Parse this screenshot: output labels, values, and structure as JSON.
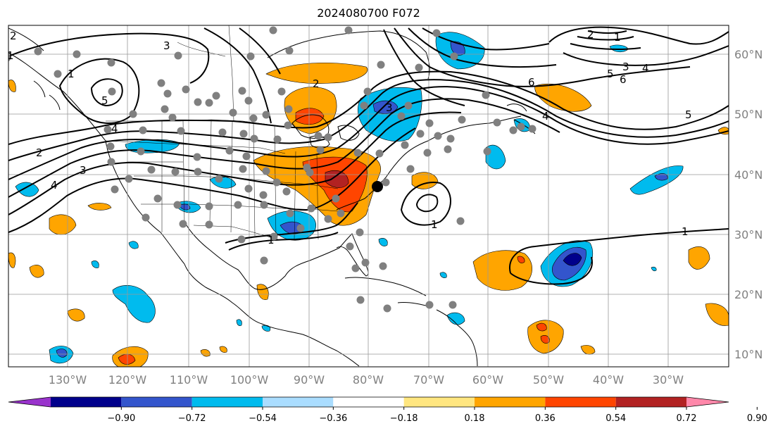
{
  "title": "2024080700 F072",
  "map": {
    "lon_labels": [
      "130°W",
      "120°W",
      "110°W",
      "100°W",
      "90°W",
      "80°W",
      "70°W",
      "60°W",
      "50°W",
      "40°W",
      "30°W"
    ],
    "lat_labels": [
      "60°N",
      "50°N",
      "40°N",
      "30°N",
      "20°N",
      "10°N"
    ],
    "contour_labels": [
      "2",
      "1",
      "5",
      "4",
      "3",
      "2",
      "1",
      "4",
      "3",
      "6",
      "5",
      "4",
      "3",
      "2",
      "1",
      "1",
      "1",
      "5",
      "6",
      "4",
      "3",
      "2",
      "1"
    ]
  },
  "colorbar": {
    "tick_labels": [
      "−0.90",
      "−0.72",
      "−0.54",
      "−0.36",
      "−0.18",
      "0.18",
      "0.36",
      "0.54",
      "0.72",
      "0.90"
    ],
    "colors": [
      "#9933cc",
      "#00008b",
      "#3355cc",
      "#00bbee",
      "#aaddff",
      "#ffffff",
      "#ffe680",
      "#ffa500",
      "#ff4500",
      "#b22222",
      "#ff88aa"
    ]
  }
}
